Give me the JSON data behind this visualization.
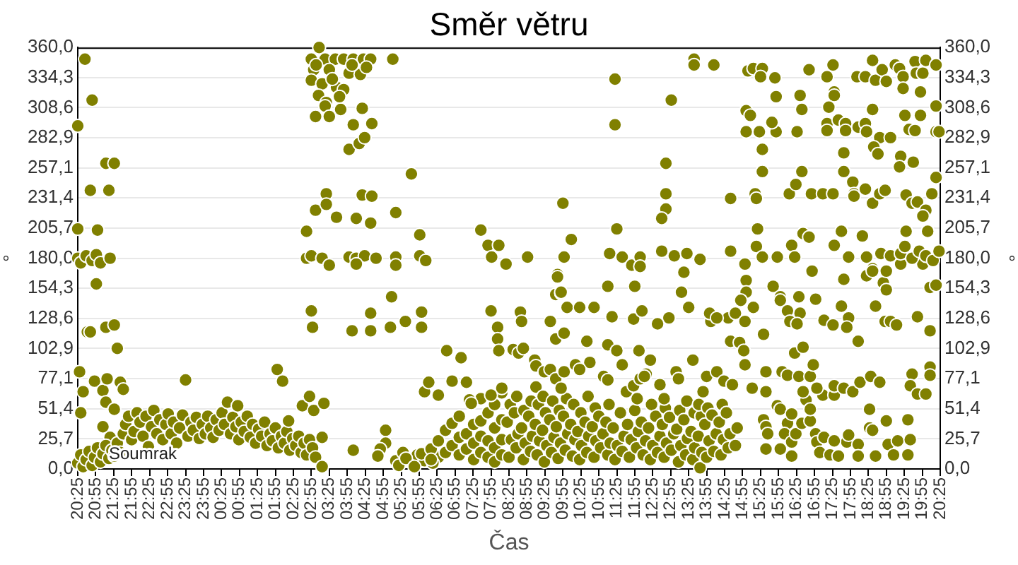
{
  "chart_data": {
    "type": "scatter",
    "title": "Směr větru",
    "xlabel": "Čas",
    "ylabel": "°",
    "y2label": "°",
    "annotations": [
      "Soumrak"
    ],
    "xlim": [
      "--01-01T20:25",
      "--01-02T20:25"
    ],
    "xticks": [
      {
        "value": "--01-01T20:25",
        "label": "20:25"
      },
      {
        "value": "--01-01T20:55",
        "label": "20:55"
      },
      {
        "value": "--01-01T21:25",
        "label": "21:25"
      },
      {
        "value": "--01-01T21:55",
        "label": "21:55"
      },
      {
        "value": "--01-01T22:25",
        "label": "22:25"
      },
      {
        "value": "--01-01T22:55",
        "label": "22:55"
      },
      {
        "value": "--01-01T23:25",
        "label": "23:25"
      },
      {
        "value": "--01-01T23:55",
        "label": "23:55"
      },
      {
        "value": "--01-02T00:25",
        "label": "00:25"
      },
      {
        "value": "--01-02T00:55",
        "label": "00:55"
      },
      {
        "value": "--01-02T01:25",
        "label": "01:25"
      },
      {
        "value": "--01-02T01:55",
        "label": "01:55"
      },
      {
        "value": "--01-02T02:25",
        "label": "02:25"
      },
      {
        "value": "--01-02T02:55",
        "label": "02:55"
      },
      {
        "value": "--01-02T03:25",
        "label": "03:25"
      },
      {
        "value": "--01-02T03:55",
        "label": "03:55"
      },
      {
        "value": "--01-02T04:25",
        "label": "04:25"
      },
      {
        "value": "--01-02T04:55",
        "label": "04:55"
      },
      {
        "value": "--01-02T05:25",
        "label": "05:25"
      },
      {
        "value": "--01-02T05:55",
        "label": "05:55"
      },
      {
        "value": "--01-02T06:25",
        "label": "06:25"
      },
      {
        "value": "--01-02T06:55",
        "label": "06:55"
      },
      {
        "value": "--01-02T07:25",
        "label": "07:25"
      },
      {
        "value": "--01-02T07:55",
        "label": "07:55"
      },
      {
        "value": "--01-02T08:25",
        "label": "08:25"
      },
      {
        "value": "--01-02T08:55",
        "label": "08:55"
      },
      {
        "value": "--01-02T09:25",
        "label": "09:25"
      },
      {
        "value": "--01-02T09:55",
        "label": "09:55"
      },
      {
        "value": "--01-02T10:25",
        "label": "10:25"
      },
      {
        "value": "--01-02T10:55",
        "label": "10:55"
      },
      {
        "value": "--01-02T11:25",
        "label": "11:25"
      },
      {
        "value": "--01-02T11:55",
        "label": "11:55"
      },
      {
        "value": "--01-02T12:25",
        "label": "12:25"
      },
      {
        "value": "--01-02T12:55",
        "label": "12:55"
      },
      {
        "value": "--01-02T13:25",
        "label": "13:25"
      },
      {
        "value": "--01-02T13:55",
        "label": "13:55"
      },
      {
        "value": "--01-02T14:25",
        "label": "14:25"
      },
      {
        "value": "--01-02T14:55",
        "label": "14:55"
      },
      {
        "value": "--01-02T15:25",
        "label": "15:25"
      },
      {
        "value": "--01-02T15:55",
        "label": "15:55"
      },
      {
        "value": "--01-02T16:25",
        "label": "16:25"
      },
      {
        "value": "--01-02T16:55",
        "label": "16:55"
      },
      {
        "value": "--01-02T17:25",
        "label": "17:25"
      },
      {
        "value": "--01-02T17:55",
        "label": "17:55"
      },
      {
        "value": "--01-02T18:25",
        "label": "18:25"
      },
      {
        "value": "--01-02T18:55",
        "label": "18:55"
      },
      {
        "value": "--01-02T19:25",
        "label": "19:25"
      },
      {
        "value": "--01-02T19:55",
        "label": "19:55"
      },
      {
        "value": "--01-02T20:25",
        "label": "20:25"
      }
    ],
    "ylim": [
      0,
      360
    ],
    "yticks": [
      {
        "value": 0,
        "label": "0,0"
      },
      {
        "value": 25.714,
        "label": "25,7"
      },
      {
        "value": 51.429,
        "label": "51,4"
      },
      {
        "value": 77.143,
        "label": "77,1"
      },
      {
        "value": 102.857,
        "label": "102,9"
      },
      {
        "value": 128.571,
        "label": "128,6"
      },
      {
        "value": 154.286,
        "label": "154,3"
      },
      {
        "value": 180,
        "label": "180,0"
      },
      {
        "value": 205.714,
        "label": "205,7"
      },
      {
        "value": 231.429,
        "label": "231,4"
      },
      {
        "value": 257.143,
        "label": "257,1"
      },
      {
        "value": 282.857,
        "label": "282,9"
      },
      {
        "value": 308.571,
        "label": "308,6"
      },
      {
        "value": 334.286,
        "label": "334,3"
      },
      {
        "value": 360,
        "label": "360,0"
      }
    ],
    "y2lim": [
      0,
      360
    ],
    "y2ticks": [
      {
        "value": 0,
        "label": "0,0"
      },
      {
        "value": 25.714,
        "label": "25,7"
      },
      {
        "value": 51.429,
        "label": "51,4"
      },
      {
        "value": 77.143,
        "label": "77,1"
      },
      {
        "value": 102.857,
        "label": "102,9"
      },
      {
        "value": 128.571,
        "label": "128,6"
      },
      {
        "value": 154.286,
        "label": "154,3"
      },
      {
        "value": 180,
        "label": "180,0"
      },
      {
        "value": 205.714,
        "label": "205,7"
      },
      {
        "value": 231.429,
        "label": "231,4"
      },
      {
        "value": 257.143,
        "label": "257,1"
      },
      {
        "value": 282.857,
        "label": "282,9"
      },
      {
        "value": 308.571,
        "label": "308,6"
      },
      {
        "value": 334.286,
        "label": "334,3"
      },
      {
        "value": 360,
        "label": "360,0"
      }
    ],
    "grid": "y",
    "marker": "circle",
    "series": [
      {
        "color": "#808000",
        "x": [
          "--01-01T20:25",
          "--01-01T20:37",
          "--01-01T20:49",
          "--01-01T21:12",
          "--01-01T21:26",
          "--01-01T20:46",
          "--01-01T21:17",
          "--01-01T20:25",
          "--01-01T20:58",
          "--01-01T20:25",
          "--01-01T20:30",
          "--01-01T20:39",
          "--01-01T20:49",
          "--01-01T20:56",
          "--01-01T21:03",
          "--01-01T21:19",
          "--01-01T20:56",
          "--01-01T20:41",
          "--01-01T20:46",
          "--01-01T21:12",
          "--01-01T21:26",
          "--01-01T21:31",
          "--01-01T20:28",
          "--01-01T20:34",
          "--01-01T20:30",
          "--01-01T20:53",
          "--01-01T21:07",
          "--01-01T21:14",
          "--01-01T21:12",
          "--01-01T21:26",
          "--01-01T21:36",
          "--01-01T21:41",
          "--01-01T21:07",
          "--01-01T21:19",
          "--01-01T20:25",
          "--01-01T20:30",
          "--01-01T20:34",
          "--01-01T20:39",
          "--01-01T20:44",
          "--01-01T20:49",
          "--01-01T20:53",
          "--01-01T20:58",
          "--01-01T21:03",
          "--01-01T21:07",
          "--01-01T21:12",
          "--01-01T21:17",
          "--01-01T21:22",
          "--01-01T21:26",
          "--01-01T21:31",
          "--01-01T21:36",
          "--01-01T21:41",
          "--01-01T21:45",
          "--01-01T21:50",
          "--01-01T21:55",
          "--01-01T21:59",
          "--01-01T22:04",
          "--01-01T22:09",
          "--01-01T22:14",
          "--01-01T22:19",
          "--01-01T22:23",
          "--01-01T22:28",
          "--01-01T22:32",
          "--01-01T22:37",
          "--01-01T22:42",
          "--01-01T22:47",
          "--01-01T22:52",
          "--01-01T22:56",
          "--01-01T23:01",
          "--01-01T23:05",
          "--01-01T23:10",
          "--01-01T23:15",
          "--01-01T23:20",
          "--01-01T23:25",
          "--01-01T23:29",
          "--01-01T23:34",
          "--01-01T23:38",
          "--01-01T23:43",
          "--01-01T23:48",
          "--01-01T23:53",
          "--01-01T23:58",
          "--01-02T00:02",
          "--01-02T00:07",
          "--01-02T00:11",
          "--01-02T00:16",
          "--01-02T00:21",
          "--01-02T00:26",
          "--01-02T00:30",
          "--01-02T00:35",
          "--01-02T00:40",
          "--01-02T00:44",
          "--01-02T00:49",
          "--01-02T00:52",
          "--01-02T00:54",
          "--01-02T00:58",
          "--01-02T01:03",
          "--01-02T01:08",
          "--01-02T01:13",
          "--01-02T01:17",
          "--01-02T01:22",
          "--01-02T01:27",
          "--01-02T01:32",
          "--01-02T01:37",
          "--01-02T01:41",
          "--01-02T01:46",
          "--01-02T01:50",
          "--01-02T01:55",
          "--01-02T01:58",
          "--01-02T02:00",
          "--01-02T02:07",
          "--01-02T02:05",
          "--01-02T02:10",
          "--01-02T02:14",
          "--01-02T02:17",
          "--01-02T02:19",
          "--01-02T02:24",
          "--01-02T02:29",
          "--01-02T02:34",
          "--01-02T02:38",
          "--01-02T02:40",
          "--01-02T02:43",
          "--01-02T02:47",
          "--01-02T02:52",
          "--01-02T02:52",
          "--01-02T02:57",
          "--01-02T02:59",
          "--01-02T03:02",
          "--01-02T03:13",
          "--01-02T03:16",
          "--01-02T03:13",
          "--01-02T03:08",
          "--01-02T02:55",
          "--01-02T03:18",
          "--01-02T03:35",
          "--01-02T03:49",
          "--01-02T04:05",
          "--01-02T04:22",
          "--01-02T04:34",
          "--01-02T05:11",
          "--01-02T02:59",
          "--01-02T03:25",
          "--01-02T03:58",
          "--01-02T04:17",
          "--01-02T02:55",
          "--01-02T03:13",
          "--01-02T03:37",
          "--01-02T03:49",
          "--01-02T03:07",
          "--01-02T03:20",
          "--01-02T03:18",
          "--01-02T03:02",
          "--01-02T03:25",
          "--01-02T03:44",
          "--01-02T04:20",
          "--01-02T04:05",
          "--01-02T04:36",
          "--01-02T03:58",
          "--01-02T04:15",
          "--01-02T04:24",
          "--01-02T05:42",
          "--01-02T03:03",
          "--01-02T03:30",
          "--01-02T04:03",
          "--01-02T04:27",
          "--01-02T03:42",
          "--01-02T03:20",
          "--01-02T04:20",
          "--01-02T04:36",
          "--01-02T03:02",
          "--01-02T03:20",
          "--01-02T03:37",
          "--01-02T04:10",
          "--01-02T04:34",
          "--01-02T05:16",
          "--01-02T05:56",
          "--01-02T02:47",
          "--01-02T02:47",
          "--01-02T02:55",
          "--01-02T03:13",
          "--01-02T03:58",
          "--01-02T04:10",
          "--01-02T04:24",
          "--01-02T04:43",
          "--01-02T05:16",
          "--01-02T05:56",
          "--01-02T06:06",
          "--01-02T03:25",
          "--01-02T04:10",
          "--01-02T05:16",
          "--01-02T05:09",
          "--01-02T02:55",
          "--01-02T02:57",
          "--01-02T04:03",
          "--01-02T04:34",
          "--01-02T04:34",
          "--01-02T05:07",
          "--01-02T05:32",
          "--01-02T05:59",
          "--01-02T05:59",
          "--01-02T06:41",
          "--01-02T07:05",
          "--01-02T04:05",
          "--01-02T04:59",
          "--01-02T04:59",
          "--01-02T04:50",
          "--01-02T04:46",
          "--01-02T05:16",
          "--01-02T05:28",
          "--01-02T05:52",
          "--01-02T06:04",
          "--01-02T06:27",
          "--01-02T05:21",
          "--01-02T05:33",
          "--01-02T05:47",
          "--01-02T05:59",
          "--01-02T06:18",
          "--01-02T07:38",
          "--01-02T07:50",
          "--01-02T07:56",
          "--01-02T08:08",
          "--01-02T08:20",
          "--01-02T08:56",
          "--01-02T07:55",
          "--01-02T08:06",
          "--01-02T08:06",
          "--01-02T08:08",
          "--01-02T08:32",
          "--01-02T08:41",
          "--01-02T08:44",
          "--01-02T08:46",
          "--01-02T09:55",
          "--01-02T10:09",
          "--01-02T09:57",
          "--01-02T09:46",
          "--01-02T09:43",
          "--01-02T09:52",
          "--01-02T10:02",
          "--01-02T10:23",
          "--01-02T10:47",
          "--01-02T09:34",
          "--01-02T09:43",
          "--01-02T09:57",
          "--01-02T10:35",
          "--01-02T10:40",
          "--01-02T11:22",
          "--01-02T11:22",
          "--01-02T11:25",
          "--01-02T11:13",
          "--01-02T11:34",
          "--01-02T11:50",
          "--01-02T11:55",
          "--01-02T11:10",
          "--01-02T11:17",
          "--01-02T11:53",
          "--01-02T12:07",
          "--01-02T11:10",
          "--01-02T11:25",
          "--01-02T11:34",
          "--01-02T12:02",
          "--01-02T12:04",
          "--01-02T12:04",
          "--01-02T06:15",
          "--01-02T06:15",
          "--01-02T06:27",
          "--01-02T06:39",
          "--01-02T06:39",
          "--01-02T06:50",
          "--01-02T06:50",
          "--01-02T07:02",
          "--01-02T07:02",
          "--01-02T07:02",
          "--01-02T07:14",
          "--01-02T07:14",
          "--01-02T07:26",
          "--01-02T07:26",
          "--01-02T07:26",
          "--01-02T07:38",
          "--01-02T07:38",
          "--01-02T07:38",
          "--01-02T07:38",
          "--01-02T07:50",
          "--01-02T07:50",
          "--01-02T07:50",
          "--01-02T08:01",
          "--01-02T08:01",
          "--01-02T08:01",
          "--01-02T08:01",
          "--01-02T08:13",
          "--01-02T08:13",
          "--01-02T08:13",
          "--01-02T08:13",
          "--01-02T06:04",
          "--01-02T06:11",
          "--01-02T06:27",
          "--01-02T06:50",
          "--01-02T07:14",
          "--01-02T07:19",
          "--01-02T07:22",
          "--01-02T08:13",
          "--01-02T07:55",
          "--01-02T08:25",
          "--01-02T08:29",
          "--01-02T08:22",
          "--01-02T08:27",
          "--01-02T08:37",
          "--01-02T08:40",
          "--01-02T08:34",
          "--01-02T08:38",
          "--01-02T08:49",
          "--01-02T08:52",
          "--01-02T08:46",
          "--01-02T08:50",
          "--01-02T09:01",
          "--01-02T09:04",
          "--01-02T08:58",
          "--01-02T09:02",
          "--01-02T09:12",
          "--01-02T09:16",
          "--01-02T09:09",
          "--01-02T09:14",
          "--01-02T09:10",
          "--01-02T09:24",
          "--01-02T09:28",
          "--01-02T09:21",
          "--01-02T09:26",
          "--01-02T09:22",
          "--01-02T09:36",
          "--01-02T09:40",
          "--01-02T09:33",
          "--01-02T09:38",
          "--01-02T09:47",
          "--01-02T09:51",
          "--01-02T09:44",
          "--01-02T09:49",
          "--01-02T09:59",
          "--01-02T10:03",
          "--01-02T09:56",
          "--01-02T10:01",
          "--01-02T10:11",
          "--01-02T10:15",
          "--01-02T10:08",
          "--01-02T10:13",
          "--01-02T10:23",
          "--01-02T10:26",
          "--01-02T10:20",
          "--01-02T10:25",
          "--01-02T10:35",
          "--01-02T10:38",
          "--01-02T10:32",
          "--01-02T10:37",
          "--01-02T10:47",
          "--01-02T10:50",
          "--01-02T10:44",
          "--01-02T10:49",
          "--01-02T10:58",
          "--01-02T11:02",
          "--01-02T10:55",
          "--01-02T11:10",
          "--01-02T11:14",
          "--01-02T11:07",
          "--01-02T11:12",
          "--01-02T11:22",
          "--01-02T11:26",
          "--01-02T11:19",
          "--01-02T11:34",
          "--01-02T11:37",
          "--01-02T11:31",
          "--01-02T11:46",
          "--01-02T11:49",
          "--01-02T11:43",
          "--01-02T11:58",
          "--01-02T12:01",
          "--01-02T11:55",
          "--01-02T11:59",
          "--01-02T12:09",
          "--01-02T12:13",
          "--01-02T12:06",
          "--01-02T12:21",
          "--01-02T12:25",
          "--01-02T12:18",
          "--01-02T12:23",
          "--01-02T12:33",
          "--01-02T12:37",
          "--01-02T12:30",
          "--01-02T12:44",
          "--01-02T12:48",
          "--01-02T12:41",
          "--01-02T12:46",
          "--01-02T12:56",
          "--01-02T13:00",
          "--01-02T12:53",
          "--01-02T13:08",
          "--01-02T13:12",
          "--01-02T13:05",
          "--01-02T13:10",
          "--01-02T13:20",
          "--01-02T13:23",
          "--01-02T13:17",
          "--01-02T13:22",
          "--01-02T13:32",
          "--01-02T13:35",
          "--01-02T13:29",
          "--01-02T13:34",
          "--01-02T13:44",
          "--01-02T13:47",
          "--01-02T13:41",
          "--01-02T13:46",
          "--01-02T13:42",
          "--01-02T13:55",
          "--01-02T13:59",
          "--01-02T13:52",
          "--01-02T13:57",
          "--01-02T14:07",
          "--01-02T14:11",
          "--01-02T14:04",
          "--01-02T14:19",
          "--01-02T14:23",
          "--01-02T14:16",
          "--01-02T14:21",
          "--01-02T14:31",
          "--01-02T14:34",
          "--01-02T14:28",
          "--01-02T14:43",
          "--01-02T14:46",
          "--01-02T08:49",
          "--01-02T09:08",
          "--01-02T09:10",
          "--01-02T09:24",
          "--01-02T09:34",
          "--01-02T09:43",
          "--01-02T09:57",
          "--01-02T09:52",
          "--01-02T10:16",
          "--01-02T10:23",
          "--01-02T11:03",
          "--01-02T11:10",
          "--01-02T11:41",
          "--01-02T11:53",
          "--01-02T12:04",
          "--01-02T12:14",
          "--01-02T12:21",
          "--01-02T12:11",
          "--01-02T12:37",
          "--01-02T12:44",
          "--01-02T13:04",
          "--01-02T13:08",
          "--01-02T13:32",
          "--01-02T13:49",
          "--01-02T13:55",
          "--01-02T14:12",
          "--01-02T14:24",
          "--01-02T14:38",
          "--01-02T14:59",
          "--01-02T15:11",
          "--01-02T09:46",
          "--01-02T09:52",
          "--01-02T13:13",
          "--01-02T15:01",
          "--01-02T15:01",
          "--01-02T14:52",
          "--01-02T15:13",
          "--01-02T15:46",
          "--01-02T15:58",
          "--01-02T15:58",
          "--01-02T16:10",
          "--01-02T16:14",
          "--01-02T16:29",
          "--01-02T16:31",
          "--01-02T16:57",
          "--01-02T16:26",
          "--01-02T13:25",
          "--01-02T12:52",
          "--01-02T12:33",
          "--01-02T14:31",
          "--01-02T14:43",
          "--01-02T14:59",
          "--01-02T15:30",
          "--01-02T14:02",
          "--01-02T14:00",
          "--01-02T14:12",
          "--01-02T14:35",
          "--01-02T14:50",
          "--01-02T14:57",
          "--01-02T16:22",
          "--01-02T16:36",
          "--01-02T17:11",
          "--01-02T17:26",
          "--01-02T17:52",
          "--01-02T17:49",
          "--01-02T17:40",
          "--01-02T17:44",
          "--01-02T18:08",
          "--01-02T18:37",
          "--01-02T18:53",
          "--01-02T19:02",
          "--01-02T19:12",
          "--01-02T19:47",
          "--01-02T20:08",
          "--01-02T20:08",
          "--01-02T20:18",
          "--01-02T18:50",
          "--01-02T18:55",
          "--01-02T18:22",
          "--01-02T18:32",
          "--01-02T19:19",
          "--01-02T19:56",
          "--01-02T13:34",
          "--01-02T13:34",
          "--01-02T14:07",
          "--01-02T12:56",
          "--01-02T12:47",
          "--01-02T12:47",
          "--01-02T12:47",
          "--01-02T12:40",
          "--01-02T12:40",
          "--01-02T13:01",
          "--01-02T13:22",
          "--01-02T13:17",
          "--01-02T13:44",
          "--01-02T14:35",
          "--01-02T14:35",
          "--01-02T14:59",
          "--01-02T15:04",
          "--01-02T15:13",
          "--01-02T15:28",
          "--01-02T15:25",
          "--01-02T15:49",
          "--01-02T15:01",
          "--01-02T15:08",
          "--01-02T15:01",
          "--01-02T15:23",
          "--01-02T15:51",
          "--01-02T15:51",
          "--01-02T15:44",
          "--01-02T15:28",
          "--01-02T15:28",
          "--01-02T15:16",
          "--01-02T15:18",
          "--01-02T15:20",
          "--01-02T15:18",
          "--01-02T15:28",
          "--01-02T15:53",
          "--01-02T16:17",
          "--01-02T16:13",
          "--01-02T16:24",
          "--01-02T16:34",
          "--01-02T16:26",
          "--01-02T16:34",
          "--01-02T16:31",
          "--01-02T16:46",
          "--01-02T16:36",
          "--01-02T16:46",
          "--01-02T16:22",
          "--01-02T16:51",
          "--01-02T16:50",
          "--01-02T17:09",
          "--01-02T17:26",
          "--01-02T17:16",
          "--01-02T17:26",
          "--01-02T17:28",
          "--01-02T17:28",
          "--01-02T17:19",
          "--01-02T17:16",
          "--01-02T17:16",
          "--01-02T17:35",
          "--01-02T17:47",
          "--01-02T17:47",
          "--01-02T18:08",
          "--01-02T18:20",
          "--01-02T18:22",
          "--01-02T18:44",
          "--01-02T19:02",
          "--01-02T17:44",
          "--01-02T17:44",
          "--01-02T17:59",
          "--01-02T18:01",
          "--01-02T18:01",
          "--01-02T18:20",
          "--01-02T18:32",
          "--01-02T18:44",
          "--01-02T18:53",
          "--01-02T17:40",
          "--01-02T17:28",
          "--01-02T17:52",
          "--01-02T18:15",
          "--01-02T18:22",
          "--01-02T18:32",
          "--01-02T18:46",
          "--01-02T18:55",
          "--01-02T18:06",
          "--01-02T18:20",
          "--01-02T18:32",
          "--01-02T18:37",
          "--01-02T18:48",
          "--01-02T18:55",
          "--01-02T18:32",
          "--01-02T18:34",
          "--01-02T18:41",
          "--01-02T19:10",
          "--01-02T19:17",
          "--01-02T19:23",
          "--01-02T19:23",
          "--01-02T19:43",
          "--01-02T19:45",
          "--01-02T19:56",
          "--01-02T19:52",
          "--01-02T20:01",
          "--01-02T20:18",
          "--01-02T19:26",
          "--01-02T19:52",
          "--01-02T19:33",
          "--01-02T19:43",
          "--01-02T20:18",
          "--01-02T20:18",
          "--01-02T20:23",
          "--01-02T19:19",
          "--01-02T19:17",
          "--01-02T19:40",
          "--01-02T20:18",
          "--01-02T20:11",
          "--01-02T19:28",
          "--01-02T19:38",
          "--01-02T19:47",
          "--01-02T20:01",
          "--01-02T19:56",
          "--01-02T20:04",
          "--01-02T19:28",
          "--01-02T19:02",
          "--01-02T19:19",
          "--01-02T19:38",
          "--01-02T19:50",
          "--01-02T20:01",
          "--01-02T20:13",
          "--01-02T20:23",
          "--01-02T19:26",
          "--01-02T15:30",
          "--01-02T15:34",
          "--01-02T15:37",
          "--01-02T15:53",
          "--01-02T15:58",
          "--01-02T16:10",
          "--01-02T16:05",
          "--01-02T16:17",
          "--01-02T15:58",
          "--01-02T15:34",
          "--01-02T16:17",
          "--01-02T16:17",
          "--01-02T16:24",
          "--01-02T16:34",
          "--01-02T16:41",
          "--01-02T16:48",
          "--01-02T16:57",
          "--01-02T16:59",
          "--01-02T17:04",
          "--01-02T17:11",
          "--01-02T17:21",
          "--01-02T16:48",
          "--01-02T17:09",
          "--01-02T17:28",
          "--01-02T17:35",
          "--01-02T17:49",
          "--01-02T18:08",
          "--01-02T18:08",
          "--01-02T18:27",
          "--01-02T18:27",
          "--01-02T18:32",
          "--01-02T18:37",
          "--01-02T18:55",
          "--01-02T18:58",
          "--01-02T19:07",
          "--01-02T19:14",
          "--01-02T19:31",
          "--01-02T19:31",
          "--01-02T19:35",
          "--01-02T17:52",
          "--01-02T17:28",
          "--01-02T15:34",
          "--01-02T15:34",
          "--01-02T16:01",
          "--01-02T16:10",
          "--01-02T16:29",
          "--01-02T16:36",
          "--01-02T16:48",
          "--01-02T16:53",
          "--01-02T16:59",
          "--01-02T17:28",
          "--01-02T17:44",
          "--01-02T17:59",
          "--01-02T18:11",
          "--01-02T18:29",
          "--01-02T18:44",
          "--01-02T19:38",
          "--01-02T19:35",
          "--01-02T19:47",
          "--01-02T20:01",
          "--01-02T20:08",
          "--01-02T20:08"
        ],
        "values": [
          293,
          350,
          315,
          261,
          261,
          238,
          238,
          205,
          204,
          180,
          176,
          182,
          178,
          183,
          176,
          180,
          158,
          117,
          117,
          121,
          123,
          103,
          83,
          66,
          48,
          75,
          67,
          77,
          57,
          51,
          74,
          68,
          36,
          27,
          5,
          12,
          2,
          8,
          15,
          3,
          10,
          18,
          6,
          13,
          20,
          9,
          16,
          11,
          22,
          14,
          30,
          38,
          45,
          25,
          32,
          48,
          40,
          28,
          45,
          19,
          36,
          50,
          30,
          42,
          25,
          38,
          47,
          30,
          40,
          22,
          35,
          46,
          76,
          28,
          40,
          33,
          44,
          26,
          38,
          30,
          45,
          35,
          27,
          42,
          33,
          48,
          38,
          57,
          30,
          44,
          36,
          54,
          25,
          40,
          32,
          45,
          27,
          38,
          22,
          34,
          28,
          40,
          20,
          30,
          24,
          35,
          85,
          18,
          75,
          28,
          22,
          32,
          41,
          16,
          26,
          20,
          28,
          14,
          54,
          22,
          12,
          62,
          25,
          18,
          50,
          10,
          27,
          56,
          2,
          360,
          350,
          350,
          350,
          350,
          350,
          350,
          350,
          350,
          341,
          341,
          338,
          337,
          332,
          329,
          326,
          324,
          319,
          313,
          310,
          301,
          301,
          307,
          308,
          294,
          295,
          273,
          278,
          283,
          252,
          345,
          333,
          345,
          343,
          318,
          235,
          234,
          233,
          221,
          226,
          215,
          214,
          210,
          219,
          200,
          203,
          180,
          182,
          180,
          181,
          180,
          182,
          180,
          181,
          182,
          178,
          174,
          175,
          174,
          147,
          135,
          121,
          118,
          133,
          118,
          121,
          126,
          134,
          121,
          101,
          95,
          16,
          33,
          22,
          17,
          11,
          7,
          14,
          12,
          7,
          10,
          3,
          9,
          2,
          13,
          5,
          204,
          191,
          181,
          191,
          175,
          181,
          135,
          121,
          111,
          101,
          102,
          99,
          134,
          126,
          227,
          196,
          181,
          166,
          149,
          150,
          138,
          138,
          138,
          126,
          111,
          116,
          109,
          91,
          333,
          294,
          205,
          184,
          181,
          174,
          156,
          156,
          130,
          128,
          135,
          106,
          101,
          89,
          101,
          181,
          173,
          17,
          8,
          24,
          14,
          33,
          20,
          39,
          12,
          27,
          45,
          17,
          30,
          8,
          22,
          38,
          14,
          28,
          41,
          60,
          10,
          24,
          48,
          6,
          18,
          35,
          55,
          12,
          25,
          42,
          65,
          66,
          74,
          63,
          75,
          74,
          59,
          56,
          69,
          63,
          10,
          25,
          40,
          55,
          18,
          30,
          48,
          62,
          8,
          22,
          35,
          50,
          15,
          28,
          45,
          58,
          12,
          24,
          38,
          55,
          70,
          6,
          20,
          33,
          48,
          62,
          14,
          27,
          42,
          58,
          9,
          22,
          36,
          50,
          16,
          30,
          45,
          60,
          11,
          25,
          38,
          55,
          8,
          20,
          32,
          48,
          14,
          28,
          40,
          62,
          10,
          24,
          36,
          52,
          18,
          30,
          45,
          12,
          22,
          40,
          55,
          8,
          20,
          35,
          15,
          28,
          48,
          10,
          25,
          38,
          18,
          32,
          50,
          60,
          12,
          24,
          40,
          8,
          20,
          35,
          55,
          14,
          28,
          45,
          10,
          22,
          38,
          52,
          16,
          30,
          44,
          6,
          20,
          34,
          50,
          12,
          26,
          42,
          58,
          8,
          18,
          32,
          48,
          1,
          14,
          28,
          45,
          55,
          10,
          24,
          38,
          52,
          15,
          30,
          46,
          12,
          25,
          40,
          55,
          18,
          30,
          48,
          20,
          35,
          103,
          93,
          88,
          83,
          85,
          77,
          83,
          69,
          89,
          85,
          79,
          76,
          66,
          71,
          77,
          81,
          93,
          79,
          72,
          60,
          83,
          77,
          93,
          66,
          79,
          83,
          75,
          72,
          89,
          69,
          164,
          151,
          151,
          161,
          151,
          144,
          138,
          156,
          147,
          144,
          135,
          126,
          147,
          133,
          145,
          124,
          138,
          129,
          124,
          129,
          133,
          126,
          115,
          126,
          133,
          129,
          109,
          108,
          101,
          99,
          104,
          127,
          123,
          129,
          121,
          139,
          162,
          109,
          139,
          126,
          126,
          123,
          130,
          118,
          155,
          157,
          159,
          153,
          165,
          171,
          175,
          175,
          350,
          345,
          345,
          315,
          261,
          235,
          222,
          214,
          186,
          182,
          184,
          168,
          179,
          231,
          186,
          175,
          340,
          342,
          342,
          335,
          334,
          306,
          302,
          288,
          288,
          318,
          288,
          296,
          273,
          254,
          235,
          231,
          205,
          190,
          181,
          181,
          191,
          235,
          243,
          254,
          288,
          307,
          319,
          341,
          201,
          198,
          181,
          169,
          235,
          235,
          235,
          335,
          345,
          322,
          319,
          309,
          295,
          289,
          298,
          295,
          289,
          292,
          295,
          288,
          283,
          283,
          270,
          254,
          245,
          235,
          233,
          239,
          227,
          235,
          238,
          203,
          191,
          181,
          199,
          181,
          169,
          184,
          169,
          335,
          335,
          349,
          332,
          341,
          331,
          307,
          275,
          269,
          345,
          342,
          335,
          325,
          348,
          338,
          338,
          322,
          349,
          345,
          302,
          302,
          290,
          289,
          310,
          288,
          288,
          267,
          258,
          262,
          249,
          235,
          234,
          227,
          228,
          221,
          216,
          203,
          203,
          182,
          184,
          180,
          186,
          182,
          178,
          186,
          190,
          42,
          36,
          30,
          54,
          51,
          39,
          30,
          47,
          17,
          17,
          23,
          11,
          30,
          39,
          59,
          41,
          30,
          23,
          14,
          27,
          12,
          51,
          63,
          63,
          11,
          23,
          21,
          11,
          35,
          51,
          33,
          11,
          41,
          21,
          12,
          24,
          42,
          12,
          25,
          29,
          24,
          83,
          66,
          83,
          80,
          79,
          66,
          79,
          89,
          69,
          71,
          69,
          66,
          74,
          79,
          74,
          81,
          71,
          64,
          64,
          87,
          80
        ]
      }
    ]
  }
}
